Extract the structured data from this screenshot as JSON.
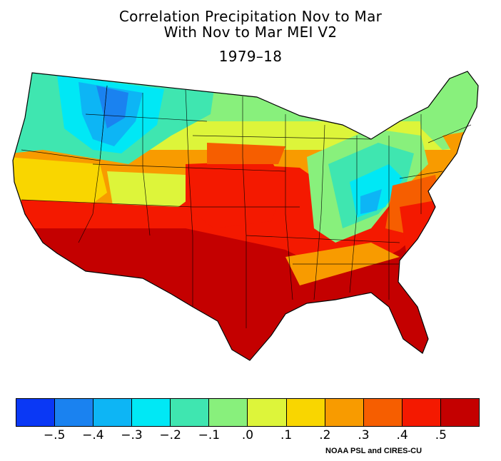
{
  "title": {
    "line1": "Correlation Precipitation Nov to Mar",
    "line2": "With Nov to Mar MEI V2",
    "period": "1979–18"
  },
  "legend": {
    "colors": [
      "#0a38f5",
      "#1a82f0",
      "#0db5f5",
      "#00e8f5",
      "#3fe6b0",
      "#88f07c",
      "#ddf53a",
      "#f9d600",
      "#f89b00",
      "#f65e00",
      "#f41900",
      "#c40000"
    ],
    "tick_labels": [
      "−.5",
      "−.4",
      "−.3",
      "−.2",
      "−.1",
      ".0",
      ".1",
      ".2",
      ".3",
      ".4",
      ".5"
    ]
  },
  "credit": "NOAA PSL and CIRES-CU"
}
